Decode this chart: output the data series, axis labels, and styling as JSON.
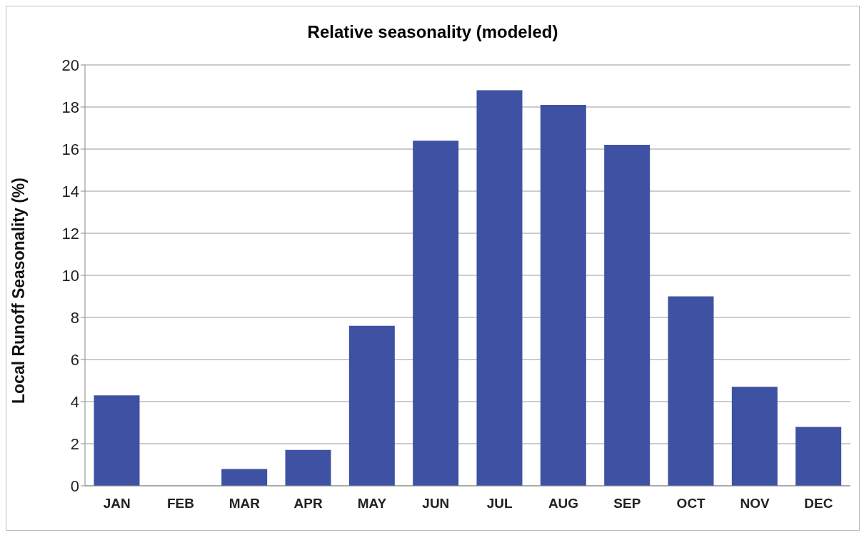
{
  "chart_data": {
    "type": "bar",
    "title": "Relative seasonality (modeled)",
    "ylabel": "Local Runoff Seasonality (%)",
    "categories": [
      "JAN",
      "FEB",
      "MAR",
      "APR",
      "MAY",
      "JUN",
      "JUL",
      "AUG",
      "SEP",
      "OCT",
      "NOV",
      "DEC"
    ],
    "values": [
      4.3,
      0,
      0.8,
      1.7,
      7.6,
      16.4,
      18.8,
      18.1,
      16.2,
      9.0,
      4.7,
      2.8
    ],
    "color": "#3f51a3",
    "ylim": [
      0,
      20
    ],
    "yticks": [
      0,
      2,
      4,
      6,
      8,
      10,
      12,
      14,
      16,
      18,
      20
    ],
    "grid": "y",
    "legend": false
  }
}
